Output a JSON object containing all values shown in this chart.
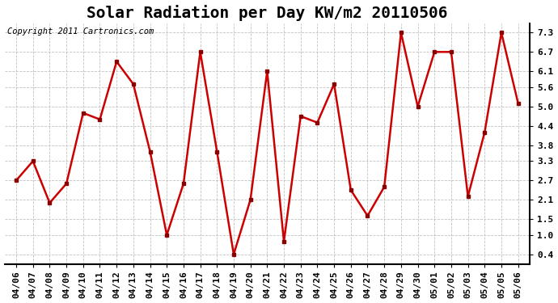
{
  "title": "Solar Radiation per Day KW/m2 20110506",
  "copyright_text": "Copyright 2011 Cartronics.com",
  "x_labels": [
    "04/06",
    "04/07",
    "04/08",
    "04/09",
    "04/10",
    "04/11",
    "04/12",
    "04/13",
    "04/14",
    "04/15",
    "04/16",
    "04/17",
    "04/18",
    "04/19",
    "04/20",
    "04/21",
    "04/22",
    "04/23",
    "04/24",
    "04/25",
    "04/26",
    "04/27",
    "04/28",
    "04/29",
    "04/30",
    "05/01",
    "05/02",
    "05/03",
    "05/04",
    "05/05",
    "05/06"
  ],
  "y_values": [
    2.7,
    3.3,
    2.0,
    2.6,
    4.8,
    4.6,
    6.4,
    5.7,
    3.6,
    1.0,
    2.6,
    6.7,
    3.6,
    0.4,
    2.1,
    6.1,
    0.8,
    4.7,
    4.5,
    5.7,
    2.4,
    1.6,
    2.5,
    7.3,
    5.0,
    6.7,
    6.7,
    2.2,
    4.2,
    7.3,
    5.1
  ],
  "line_color": "#cc0000",
  "marker_color": "#880000",
  "bg_color": "#ffffff",
  "grid_color": "#bbbbbb",
  "y_ticks": [
    0.4,
    1.0,
    1.5,
    2.1,
    2.7,
    3.3,
    3.8,
    4.4,
    5.0,
    5.6,
    6.1,
    6.7,
    7.3
  ],
  "ylim_min": 0.1,
  "ylim_max": 7.6,
  "title_fontsize": 14,
  "tick_fontsize": 8,
  "copyright_fontsize": 7.5
}
